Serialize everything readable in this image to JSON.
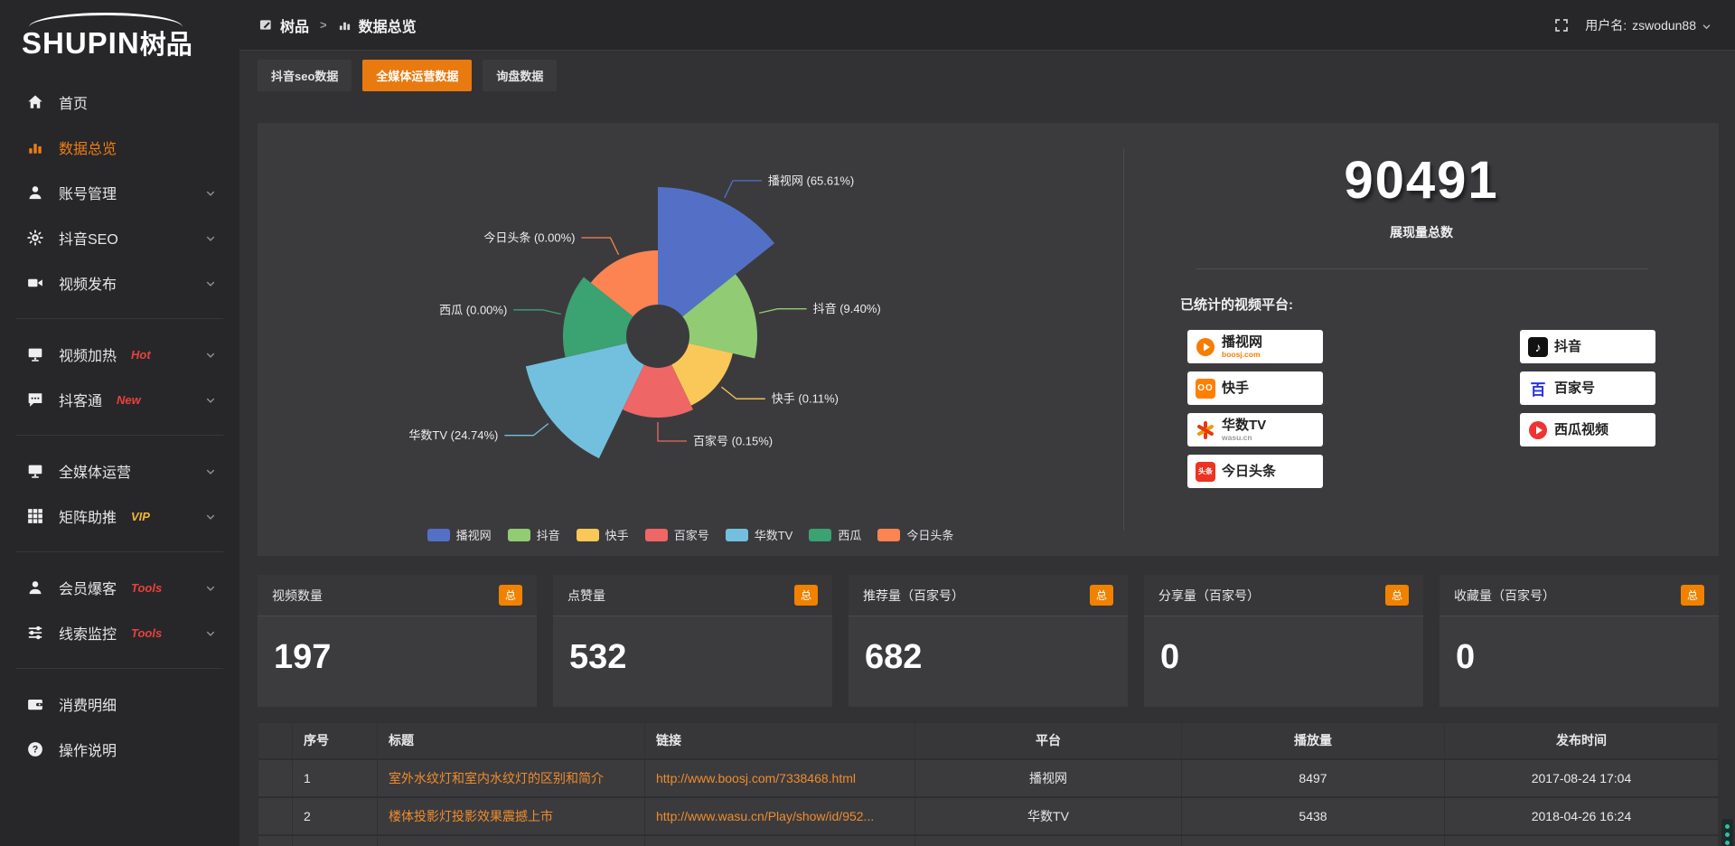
{
  "brand": {
    "logo_text": "SHUPIN",
    "logo_suffix": "树品"
  },
  "topbar": {
    "breadcrumb_root": "树品",
    "breadcrumb_separator": ">",
    "breadcrumb_current": "数据总览",
    "username_label": "用户名:",
    "username": "zswodun88"
  },
  "sidebar": {
    "items": [
      {
        "key": "home",
        "label": "首页",
        "icon": "home"
      },
      {
        "key": "data-overview",
        "label": "数据总览",
        "icon": "chart",
        "active": true
      },
      {
        "key": "account-management",
        "label": "账号管理",
        "icon": "user",
        "expandable": true
      },
      {
        "key": "douyin-seo",
        "label": "抖音SEO",
        "icon": "gear",
        "expandable": true
      },
      {
        "key": "video-publish",
        "label": "视频发布",
        "icon": "video",
        "expandable": true
      },
      {
        "divider": true
      },
      {
        "key": "video-heating",
        "label": "视频加热",
        "icon": "screen",
        "badge": "Hot",
        "badge_color": "#e8413c",
        "expandable": true
      },
      {
        "key": "douketong",
        "label": "抖客通",
        "icon": "chat",
        "badge": "New",
        "badge_color": "#e8413c",
        "expandable": true
      },
      {
        "divider": true
      },
      {
        "key": "omni-media-operation",
        "label": "全媒体运营",
        "icon": "monitor",
        "expandable": true
      },
      {
        "key": "matrix-boost",
        "label": "矩阵助推",
        "icon": "grid",
        "badge": "VIP",
        "badge_color": "#f2b632",
        "expandable": true
      },
      {
        "divider": true
      },
      {
        "key": "member-baoke",
        "label": "会员爆客",
        "icon": "user",
        "badge": "Tools",
        "badge_color": "#e8413c",
        "expandable": true
      },
      {
        "key": "lead-monitoring",
        "label": "线索监控",
        "icon": "sliders",
        "badge": "Tools",
        "badge_color": "#e8413c",
        "expandable": true
      },
      {
        "divider": true
      },
      {
        "key": "consumption-detail",
        "label": "消费明细",
        "icon": "wallet"
      },
      {
        "key": "operation-guide",
        "label": "操作说明",
        "icon": "help"
      }
    ]
  },
  "tabs": [
    {
      "key": "douyin-seo-data",
      "label": "抖音seo数据"
    },
    {
      "key": "omni-media-data",
      "label": "全媒体运营数据",
      "active": true
    },
    {
      "key": "inquiry-data",
      "label": "询盘数据"
    }
  ],
  "chart_data": {
    "type": "pie",
    "style": "nightingale-rose",
    "legend_position": "bottom",
    "labels": [
      "播视网",
      "抖音",
      "快手",
      "百家号",
      "华数TV",
      "西瓜",
      "今日头条"
    ],
    "values_percent": [
      65.61,
      9.4,
      0.11,
      0.15,
      24.74,
      0.0,
      0.0
    ],
    "colors": [
      "#5470c6",
      "#91cc75",
      "#fac858",
      "#ee6666",
      "#73c0de",
      "#3ba272",
      "#fc8452"
    ],
    "display_radii": [
      165,
      110,
      85,
      90,
      150,
      105,
      95
    ],
    "inner_radius": 35
  },
  "summary": {
    "total_value": "90491",
    "total_label": "展现量总数",
    "platforms_label": "已统计的视频平台:",
    "platforms": [
      {
        "name": "播视网",
        "sub": "boosj.com",
        "logo": "boosj"
      },
      {
        "name": "抖音",
        "sub": "",
        "logo": "douyin"
      },
      {
        "name": "快手",
        "sub": "",
        "logo": "kuaishou"
      },
      {
        "name": "百家号",
        "sub": "",
        "logo": "baijiahao"
      },
      {
        "name": "华数TV",
        "sub": "wasu.cn",
        "logo": "wasu"
      },
      {
        "name": "西瓜视频",
        "sub": "",
        "logo": "xigua"
      },
      {
        "name": "今日头条",
        "sub": "",
        "logo": "toutiao"
      }
    ]
  },
  "stat_cards": [
    {
      "label": "视频数量",
      "badge": "总",
      "value": "197"
    },
    {
      "label": "点赞量",
      "badge": "总",
      "value": "532"
    },
    {
      "label": "推荐量（百家号）",
      "badge": "总",
      "value": "682"
    },
    {
      "label": "分享量（百家号）",
      "badge": "总",
      "value": "0"
    },
    {
      "label": "收藏量（百家号）",
      "badge": "总",
      "value": "0"
    }
  ],
  "table": {
    "headers": [
      "序号",
      "标题",
      "链接",
      "平台",
      "播放量",
      "发布时间"
    ],
    "rows": [
      {
        "index": "1",
        "title": "室外水纹灯和室内水纹灯的区别和简介",
        "link": "http://www.boosj.com/7338468.html",
        "platform": "播视网",
        "plays": "8497",
        "published": "2017-08-24 17:04"
      },
      {
        "index": "2",
        "title": "楼体投影灯投影效果震撼上市",
        "link": "http://www.wasu.cn/Play/show/id/952...",
        "platform": "华数TV",
        "plays": "5438",
        "published": "2018-04-26 16:24"
      }
    ]
  },
  "accent_color": "#e87a10"
}
